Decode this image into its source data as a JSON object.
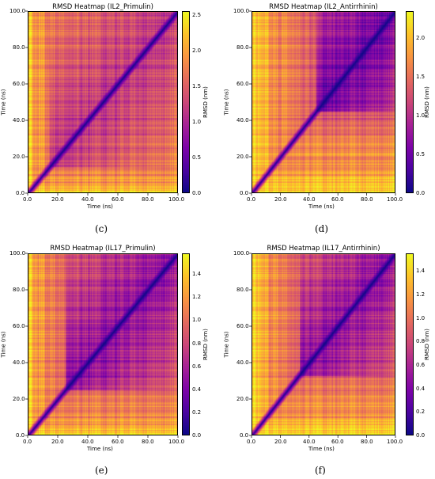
{
  "chart_data": [
    {
      "type": "heatmap",
      "panel": "c",
      "caption": "(c)",
      "title": "RMSD Heatmap (IL2_Primulin)",
      "xlabel": "Time (ns)",
      "ylabel": "Time (ns)",
      "xlim": [
        0,
        100
      ],
      "ylim": [
        0,
        100
      ],
      "xticks": [
        "0.0",
        "20.0",
        "40.0",
        "60.0",
        "80.0",
        "100.0"
      ],
      "yticks": [
        "0.0",
        "20.0",
        "40.0",
        "60.0",
        "80.0",
        "100.0"
      ],
      "colorbar": {
        "label": "RMSD (nm)",
        "colormap": "plasma",
        "range": [
          0,
          2.55
        ],
        "ticks": [
          "0.0",
          "0.5",
          "1.0",
          "1.5",
          "2.0",
          "2.5"
        ],
        "tick_values": [
          0,
          0.5,
          1.0,
          1.5,
          2.0,
          2.5
        ]
      }
    },
    {
      "type": "heatmap",
      "panel": "d",
      "caption": "(d)",
      "title": "RMSD Heatmap (IL2_Antirrhinin)",
      "xlabel": "Time (ns)",
      "ylabel": "Time (ns)",
      "xlim": [
        0,
        100
      ],
      "ylim": [
        0,
        100
      ],
      "xticks": [
        "0.0",
        "20.0",
        "40.0",
        "60.0",
        "80.0",
        "100.0"
      ],
      "yticks": [
        "0.0",
        "20.0",
        "40.0",
        "60.0",
        "80.0",
        "100.0"
      ],
      "colorbar": {
        "label": "RMSD (nm)",
        "colormap": "plasma",
        "range": [
          0,
          2.35
        ],
        "ticks": [
          "0.0",
          "0.5",
          "1.0",
          "1.5",
          "2.0"
        ],
        "tick_values": [
          0,
          0.5,
          1.0,
          1.5,
          2.0
        ]
      }
    },
    {
      "type": "heatmap",
      "panel": "e",
      "caption": "(e)",
      "title": "RMSD Heatmap (IL17_Primulin)",
      "xlabel": "Time (ns)",
      "ylabel": "Time (ns)",
      "xlim": [
        0,
        100
      ],
      "ylim": [
        0,
        100
      ],
      "xticks": [
        "0.0",
        "20.0",
        "40.0",
        "60.0",
        "80.0",
        "100.0"
      ],
      "yticks": [
        "0.0",
        "20.0",
        "40.0",
        "60.0",
        "80.0",
        "100.0"
      ],
      "colorbar": {
        "label": "RMSD (nm)",
        "colormap": "plasma",
        "range": [
          0,
          1.58
        ],
        "ticks": [
          "0.0",
          "0.2",
          "0.4",
          "0.6",
          "0.8",
          "1.0",
          "1.2",
          "1.4"
        ],
        "tick_values": [
          0,
          0.2,
          0.4,
          0.6,
          0.8,
          1.0,
          1.2,
          1.4
        ]
      }
    },
    {
      "type": "heatmap",
      "panel": "f",
      "caption": "(f)",
      "title": "RMSD Heatmap (IL17_Antirrhinin)",
      "xlabel": "Time (ns)",
      "ylabel": "Time (ns)",
      "xlim": [
        0,
        100
      ],
      "ylim": [
        0,
        100
      ],
      "xticks": [
        "0.0",
        "20.0",
        "40.0",
        "60.0",
        "80.0",
        "100.0"
      ],
      "yticks": [
        "0.0",
        "20.0",
        "40.0",
        "60.0",
        "80.0",
        "100.0"
      ],
      "colorbar": {
        "label": "RMSD (nm)",
        "colormap": "plasma",
        "range": [
          0,
          1.55
        ],
        "ticks": [
          "0.0",
          "0.2",
          "0.4",
          "0.6",
          "0.8",
          "1.0",
          "1.2",
          "1.4"
        ],
        "tick_values": [
          0,
          0.2,
          0.4,
          0.6,
          0.8,
          1.0,
          1.2,
          1.4
        ]
      }
    }
  ]
}
